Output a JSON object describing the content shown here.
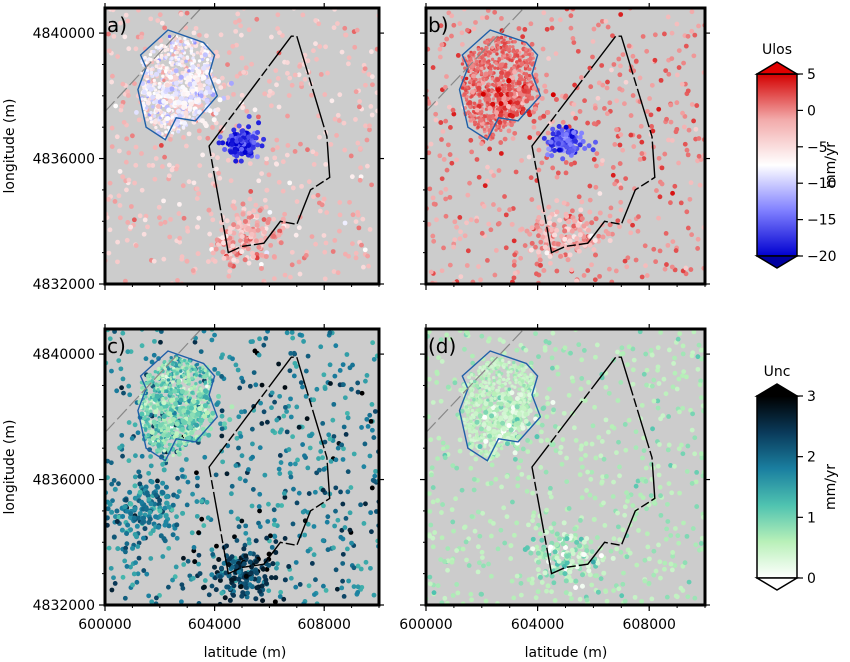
{
  "figure": {
    "colorbars": [
      {
        "title": "Ulos",
        "unit": "mm/yr",
        "range": [
          -20,
          5
        ],
        "ticks": [
          "5",
          "0",
          "−5",
          "−10",
          "−15",
          "−20"
        ],
        "tick_values": [
          5,
          0,
          -5,
          -10,
          -15,
          -20
        ],
        "stops": [
          "#d40000",
          "#f2aaaa",
          "#ffffff",
          "#8080ff",
          "#0000d0"
        ],
        "end_triangles": {
          "top": "#e00000",
          "bottom": "#0000a0"
        }
      },
      {
        "title": "Unc",
        "unit": "mm/yr",
        "range": [
          0,
          3
        ],
        "ticks": [
          "3",
          "2",
          "1",
          "0"
        ],
        "tick_values": [
          3,
          2,
          1,
          0
        ],
        "stops": [
          "#ffffff",
          "#b8f0b8",
          "#4fc3b0",
          "#1a7fa0",
          "#0a3a5a",
          "#000000"
        ],
        "end_triangles": {
          "top": "#000000",
          "bottom": "#ffffff"
        }
      }
    ],
    "background_color": "#cccccc",
    "outline_color": "#1f5fa8"
  },
  "chart_data": [
    {
      "panel": "a)",
      "type": "scatter",
      "variable": "Ulos",
      "xlabel": "",
      "ylabel": "longitude (m)",
      "xlim": [
        600000,
        610000
      ],
      "ylim": [
        4832000,
        4840000
      ],
      "xticks": [
        600000,
        604000,
        608000
      ],
      "yticks": [
        4832000,
        4836000,
        4840000
      ],
      "ytick_labels": [
        "4832000",
        "4836000",
        "4840000"
      ],
      "clusters": [
        {
          "x": 605000,
          "y": 4836500,
          "value": -18
        },
        {
          "x": 603000,
          "y": 4838000,
          "value": -8
        },
        {
          "x": 605000,
          "y": 4833500,
          "value": -2
        }
      ]
    },
    {
      "panel": "b)",
      "type": "scatter",
      "variable": "Ulos",
      "xlabel": "",
      "ylabel": "",
      "xlim": [
        600000,
        610000
      ],
      "ylim": [
        4832000,
        4840000
      ],
      "xticks": [
        600000,
        604000,
        608000
      ],
      "yticks": [
        4832000,
        4836000,
        4840000
      ],
      "clusters": [
        {
          "x": 605000,
          "y": 4836500,
          "value": -16
        },
        {
          "x": 603000,
          "y": 4838000,
          "value": 1.5
        },
        {
          "x": 605000,
          "y": 4833500,
          "value": -2
        }
      ]
    },
    {
      "panel": "c)",
      "type": "scatter",
      "variable": "Unc",
      "xlabel": "latitude (m)",
      "ylabel": "longitude (m)",
      "xlim": [
        600000,
        610000
      ],
      "ylim": [
        4832000,
        4840000
      ],
      "xticks": [
        600000,
        604000,
        608000
      ],
      "xtick_labels": [
        "600000",
        "604000",
        "608000"
      ],
      "yticks": [
        4832000,
        4836000,
        4840000
      ],
      "ytick_labels": [
        "4832000",
        "4836000",
        "4840000"
      ],
      "clusters": [
        {
          "x": 603000,
          "y": 4838000,
          "value": 1.0
        },
        {
          "x": 605000,
          "y": 4833000,
          "value": 2.4
        },
        {
          "x": 601500,
          "y": 4835000,
          "value": 1.8
        }
      ]
    },
    {
      "panel": "(d)",
      "type": "scatter",
      "variable": "Unc",
      "xlabel": "latitude (m)",
      "ylabel": "",
      "xlim": [
        600000,
        610000
      ],
      "ylim": [
        4832000,
        4840000
      ],
      "xticks": [
        600000,
        604000,
        608000
      ],
      "xtick_labels": [
        "600000",
        "604000",
        "608000"
      ],
      "yticks": [
        4832000,
        4836000,
        4840000
      ],
      "clusters": [
        {
          "x": 603000,
          "y": 4838000,
          "value": 0.5
        },
        {
          "x": 605000,
          "y": 4833500,
          "value": 0.6
        }
      ]
    }
  ]
}
